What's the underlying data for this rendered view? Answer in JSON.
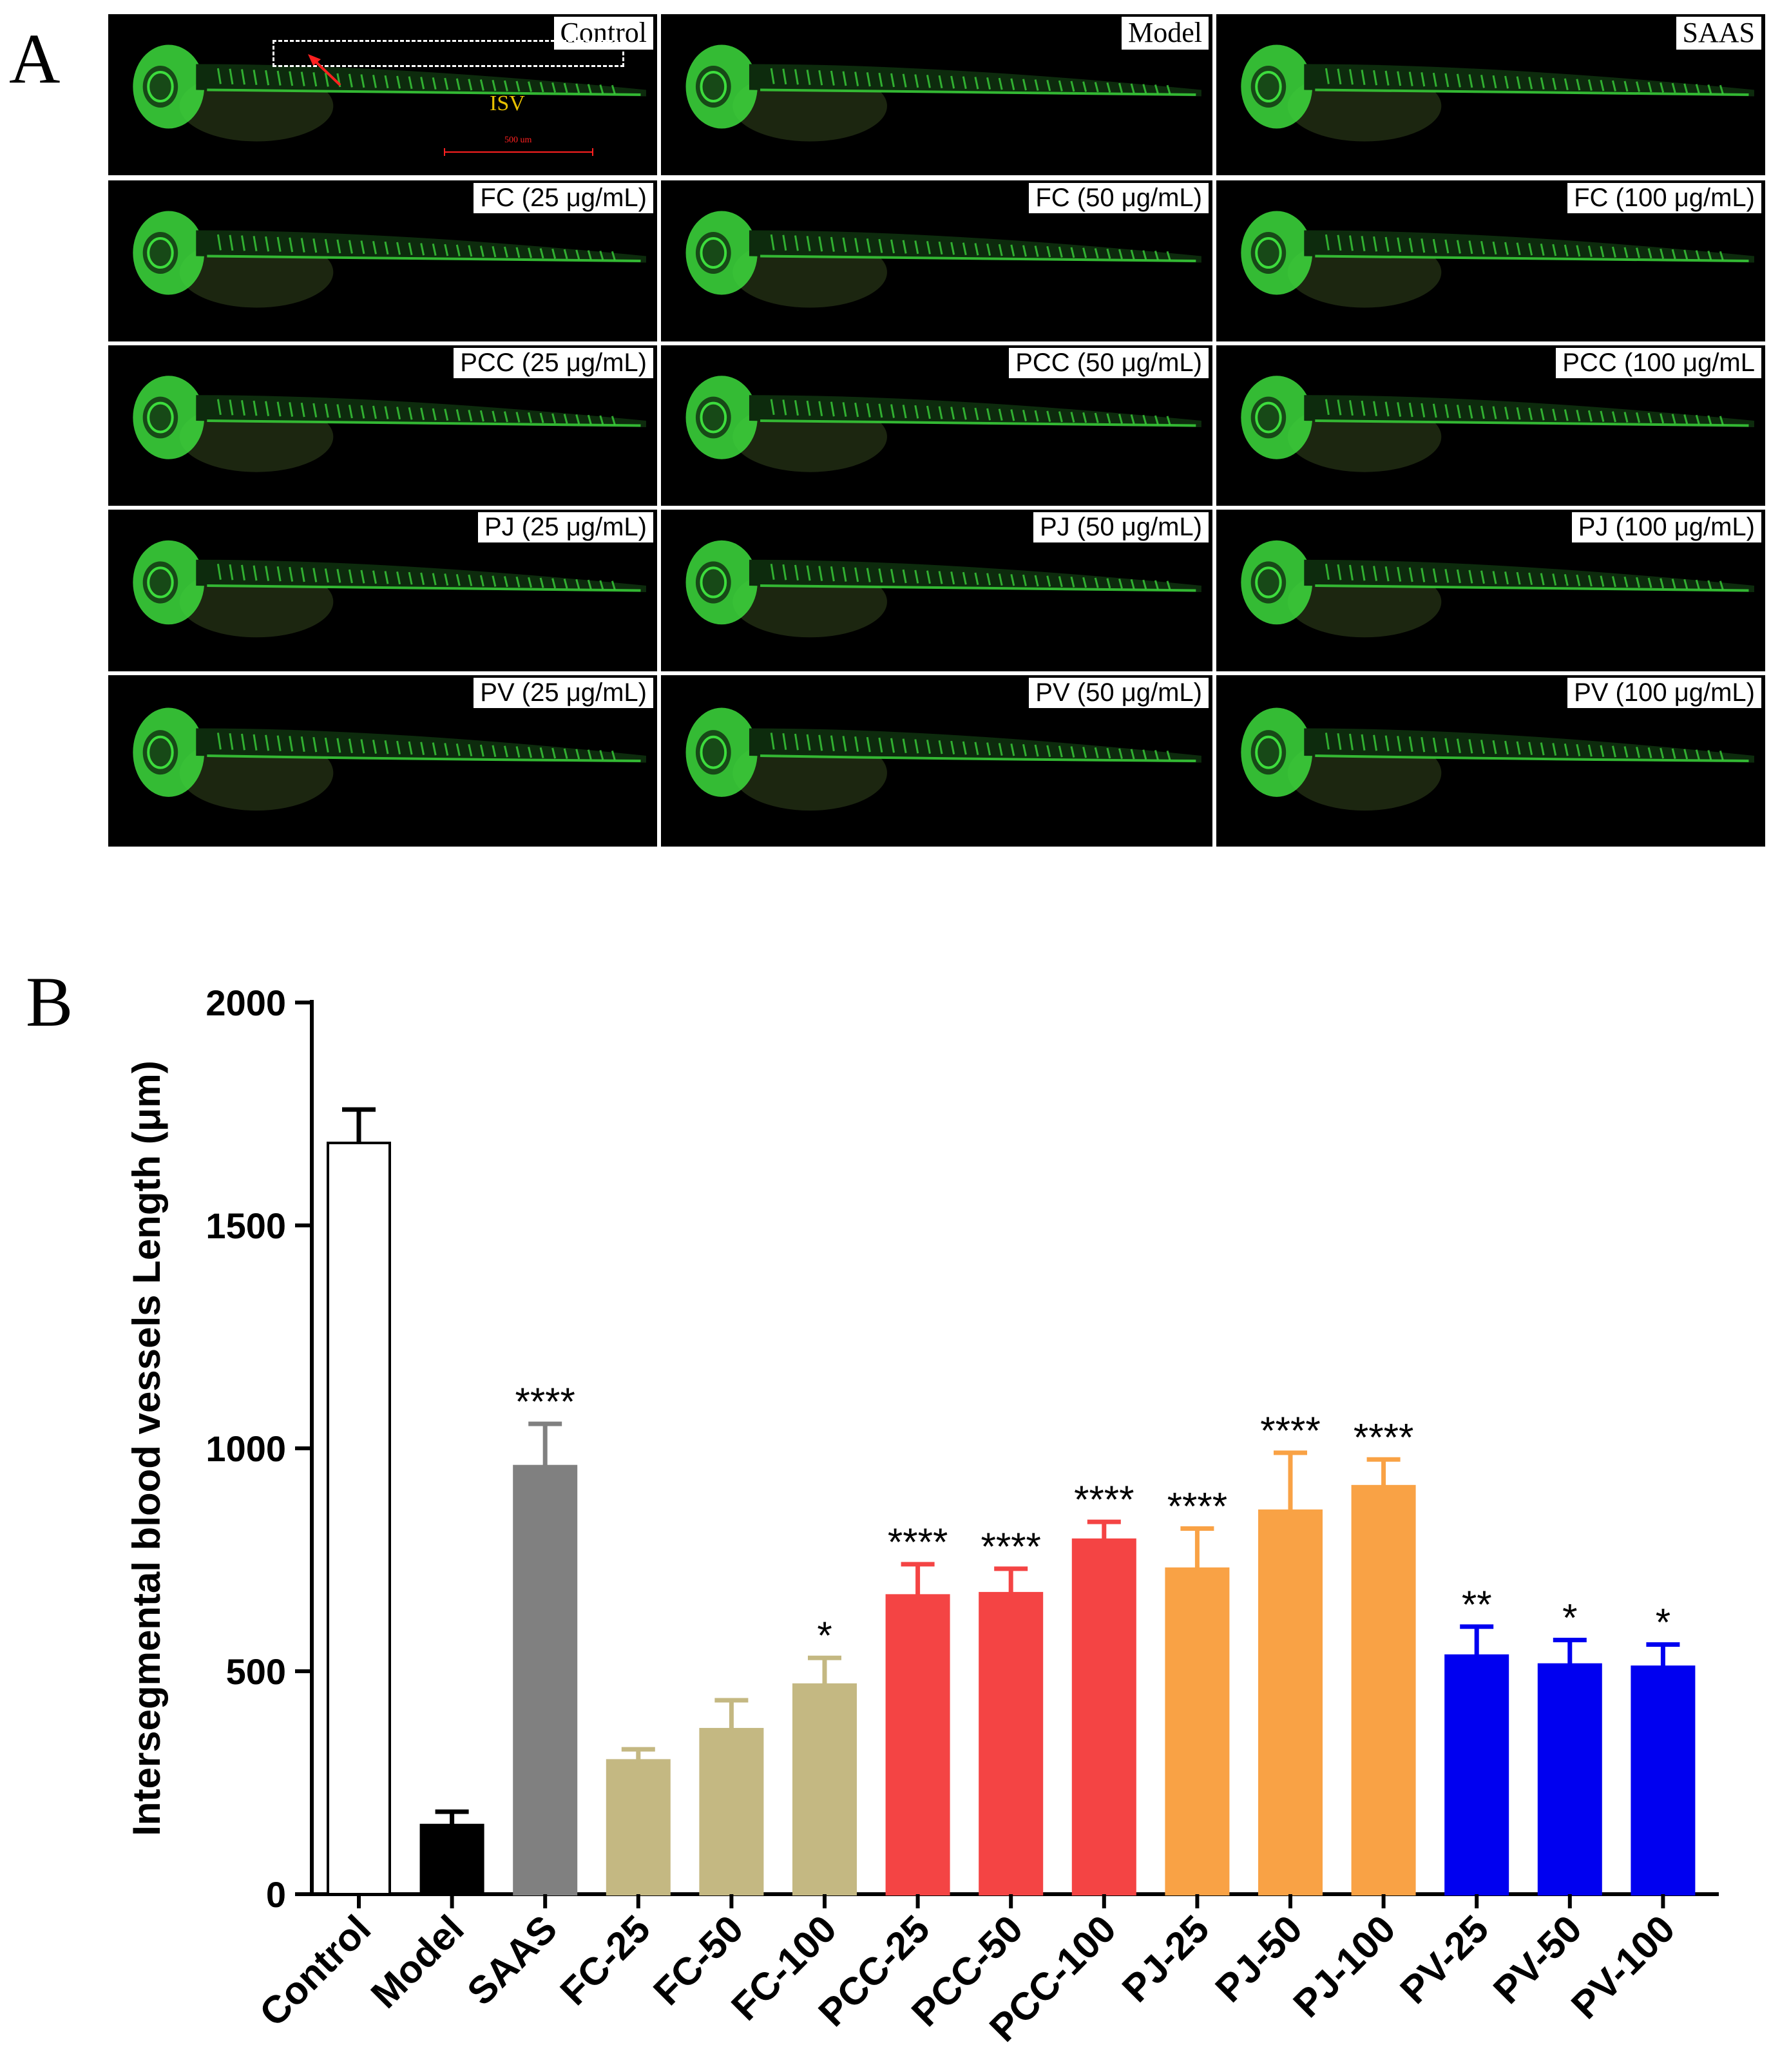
{
  "panel_a": {
    "letter": "A",
    "annotations": {
      "isv": "ISV",
      "scale": "500 um"
    },
    "rows": [
      [
        {
          "label": "Control",
          "font": "serif"
        },
        {
          "label": "Model",
          "font": "serif"
        },
        {
          "label": "SAAS",
          "font": "serif"
        }
      ],
      [
        {
          "label": "FC (25 μg/mL)",
          "font": "sans"
        },
        {
          "label": "FC (50 μg/mL)",
          "font": "sans"
        },
        {
          "label": "FC (100 μg/mL)",
          "font": "sans"
        }
      ],
      [
        {
          "label": "PCC (25 μg/mL)",
          "font": "sans"
        },
        {
          "label": "PCC (50 μg/mL)",
          "font": "sans"
        },
        {
          "label": "PCC (100 μg/mL",
          "font": "sans"
        }
      ],
      [
        {
          "label": "PJ (25 μg/mL)",
          "font": "sans"
        },
        {
          "label": "PJ (50 μg/mL)",
          "font": "sans"
        },
        {
          "label": "PJ (100 μg/mL)",
          "font": "sans"
        }
      ],
      [
        {
          "label": "PV (25 μg/mL)",
          "font": "sans"
        },
        {
          "label": "PV (50 μg/mL)",
          "font": "sans"
        },
        {
          "label": "PV (100 μg/mL)",
          "font": "sans"
        }
      ]
    ],
    "fluorescence_color": "#3ddc3d"
  },
  "panel_b": {
    "letter": "B"
  },
  "chart_data": {
    "type": "bar",
    "title": "",
    "xlabel": "",
    "ylabel": "Intersegmental blood vessels Length (μm)",
    "ylim": [
      0,
      2000
    ],
    "yticks": [
      0,
      500,
      1000,
      1500,
      2000
    ],
    "grid": false,
    "categories": [
      "Control",
      "Model",
      "SAAS",
      "FC-25",
      "FC-50",
      "FC-100",
      "PCC-25",
      "PCC-50",
      "PCC-100",
      "PJ-25",
      "PJ-50",
      "PJ-100",
      "PV-25",
      "PV-50",
      "PV-100"
    ],
    "values": [
      1685,
      155,
      960,
      300,
      370,
      470,
      670,
      675,
      795,
      730,
      860,
      915,
      535,
      515,
      510
    ],
    "errors": [
      75,
      30,
      95,
      25,
      65,
      60,
      70,
      55,
      40,
      90,
      130,
      60,
      65,
      55,
      50
    ],
    "significance": [
      "",
      "",
      "****",
      "",
      "",
      "*",
      "****",
      "****",
      "****",
      "****",
      "****",
      "****",
      "**",
      "*",
      "*"
    ],
    "colors": [
      "#ffffff",
      "#000000",
      "#808080",
      "#c4b882",
      "#c4b882",
      "#c4b882",
      "#f44444",
      "#f44444",
      "#f44444",
      "#f9a245",
      "#f9a245",
      "#f9a245",
      "#0000f0",
      "#0000f0",
      "#0000f0"
    ]
  }
}
